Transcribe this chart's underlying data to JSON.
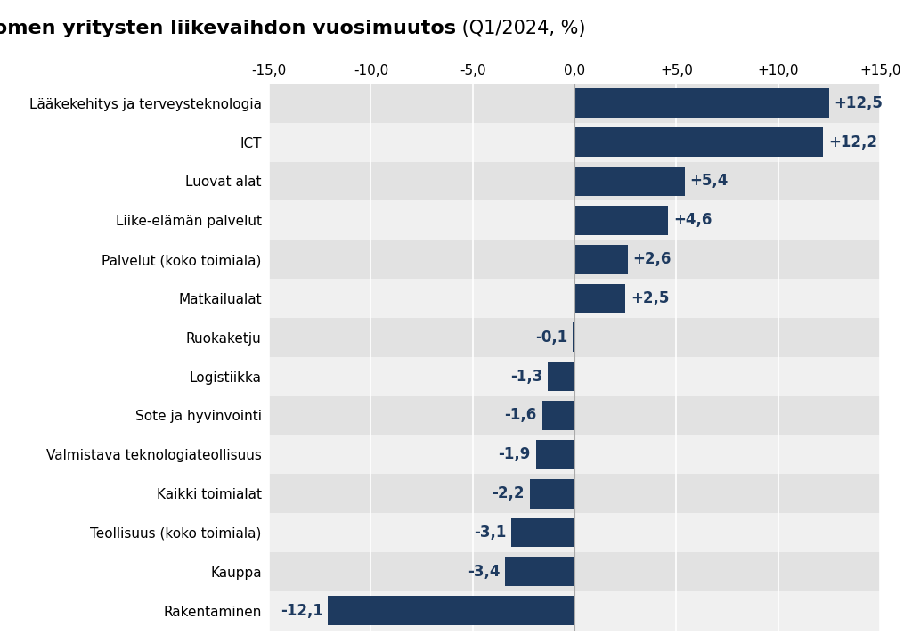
{
  "title_bold": "Varsinais-Suomen yritysten liikevaihdon vuosimuutos",
  "title_normal": " (Q1/2024, %)",
  "categories": [
    "Lääkekehitys ja terveysteknologia",
    "ICT",
    "Luovat alat",
    "Liike-elämän palvelut",
    "Palvelut (koko toimiala)",
    "Matkailualat",
    "Ruokaketju",
    "Logistiikka",
    "Sote ja hyvinvointi",
    "Valmistava teknologiateollisuus",
    "Kaikki toimialat",
    "Teollisuus (koko toimiala)",
    "Kauppa",
    "Rakentaminen"
  ],
  "values": [
    12.5,
    12.2,
    5.4,
    4.6,
    2.6,
    2.5,
    -0.1,
    -1.3,
    -1.6,
    -1.9,
    -2.2,
    -3.1,
    -3.4,
    -12.1
  ],
  "bar_color": "#1e3a5f",
  "label_color": "#1e3a5f",
  "bg_color_odd": "#e2e2e2",
  "bg_color_even": "#f0f0f0",
  "xlim": [
    -15,
    15
  ],
  "xticks": [
    -15,
    -10,
    -5,
    0,
    5,
    10,
    15
  ],
  "xtick_labels": [
    "-15,0",
    "-10,0",
    "-5,0",
    "0,0",
    "+5,0",
    "+10,0",
    "+15,0"
  ],
  "bar_height": 0.75,
  "fig_width": 10.24,
  "fig_height": 7.22,
  "label_fontsize": 12,
  "ytick_fontsize": 11,
  "xtick_fontsize": 11
}
